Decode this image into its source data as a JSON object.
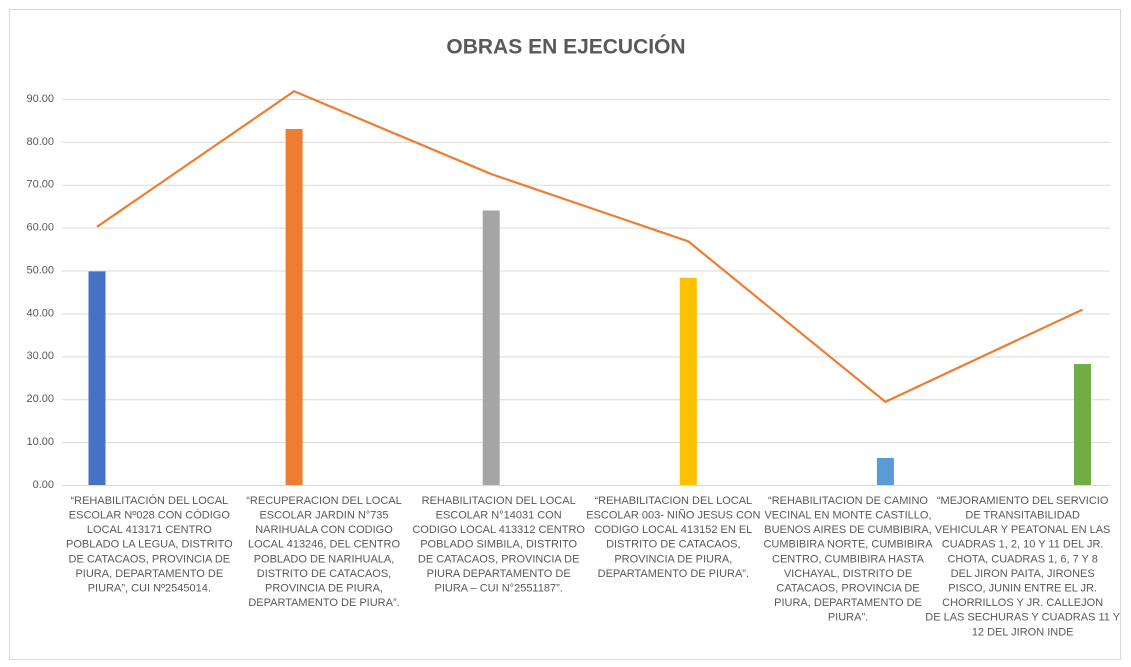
{
  "chart_data": {
    "type": "bar",
    "title": "OBRAS EN EJECUCIÓN",
    "categories": [
      [
        "“REHABILITACIÓN DEL LOCAL",
        "ESCOLAR Nº028 CON CÓDIGO",
        "LOCAL 413171 CENTRO",
        "POBLADO LA LEGUA, DISTRITO",
        "DE CATACAOS, PROVINCIA DE",
        "PIURA, DEPARTAMENTO DE",
        "PIURA”, CUI Nº2545014."
      ],
      [
        "“RECUPERACION DEL LOCAL",
        "ESCOLAR JARDIN N°735",
        "NARIHUALA CON CODIGO",
        "LOCAL 413246, DEL CENTRO",
        "POBLADO DE NARIHUALA,",
        "DISTRITO DE CATACAOS,",
        "PROVINCIA DE PIURA,",
        "DEPARTAMENTO DE PIURA”."
      ],
      [
        "REHABILITACION DEL LOCAL",
        "ESCOLAR N°14031 CON",
        "CODIGO LOCAL 413312 CENTRO",
        "POBLADO SIMBILA, DISTRITO",
        "DE CATACAOS, PROVINCIA DE",
        "PIURA DEPARTAMENTO DE",
        "PIURA – CUI N°2551187”."
      ],
      [
        "“REHABILITACION DEL LOCAL",
        "ESCOLAR 003- NIÑO JESUS CON",
        "CODIGO LOCAL 413152 EN EL",
        "DISTRITO DE CATACAOS,",
        "PROVINCIA DE PIURA,",
        "DEPARTAMENTO DE PIURA”."
      ],
      [
        "“REHABILITACION DE CAMINO",
        "VECINAL EN MONTE CASTILLO,",
        "BUENOS AIRES DE CUMBIBIRA,",
        "CUMBIBIRA NORTE, CUMBIBIRA",
        "CENTRO, CUMBIBIRA HASTA",
        "VICHAYAL, DISTRITO DE",
        "CATACAOS, PROVINCIA DE",
        "PIURA, DEPARTAMENTO DE",
        "PIURA”."
      ],
      [
        "“MEJORAMIENTO DEL SERVICIO",
        "DE TRANSITABILIDAD",
        "VEHICULAR Y PEATONAL EN LAS",
        "CUADRAS 1, 2, 10 Y 11 DEL JR.",
        "CHOTA, CUADRAS 1, 6, 7 Y 8",
        "DEL JIRON PAITA, JIRONES",
        "PISCO, JUNIN ENTRE EL JR.",
        "CHORRILLOS Y JR. CALLEJON",
        "DE LAS SECHURAS Y CUADRAS 11 Y",
        "12 DEL JIRON INDE"
      ]
    ],
    "series": [
      {
        "type": "bar",
        "colors": [
          "#4472c4",
          "#ed7d31",
          "#a5a5a5",
          "#ffc000",
          "#5b9bd5",
          "#70ad47"
        ],
        "values": [
          49.8,
          83.0,
          64.0,
          48.3,
          6.3,
          28.2
        ]
      },
      {
        "type": "line",
        "color": "#ed7d31",
        "values": [
          60.2,
          91.8,
          72.5,
          56.8,
          19.4,
          40.9
        ]
      }
    ],
    "ylim": [
      0,
      90
    ],
    "yticks": [
      {
        "value": 0,
        "label": "0.00"
      },
      {
        "value": 10,
        "label": "10.00"
      },
      {
        "value": 20,
        "label": "20.00"
      },
      {
        "value": 30,
        "label": "30.00"
      },
      {
        "value": 40,
        "label": "40.00"
      },
      {
        "value": 50,
        "label": "50.00"
      },
      {
        "value": 60,
        "label": "60.00"
      },
      {
        "value": 70,
        "label": "70.00"
      },
      {
        "value": 80,
        "label": "80.00"
      },
      {
        "value": 90,
        "label": "90.00"
      }
    ],
    "grid": true
  }
}
